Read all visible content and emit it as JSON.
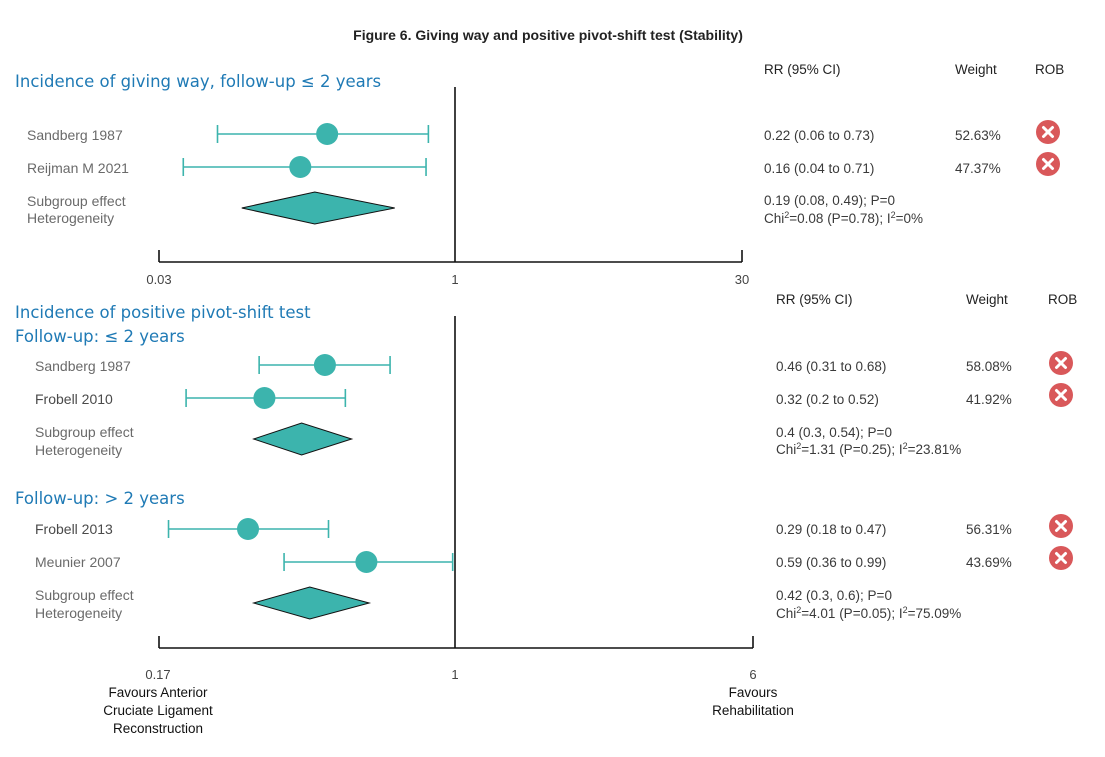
{
  "chart_data": {
    "type": "forest",
    "title": "Figure 6. Giving way and positive pivot-shift test (Stability)",
    "colors": {
      "marker": "#3cb4ad",
      "rob_high": "#d9585a",
      "section_title": "#1f7ab5"
    },
    "column_headers": {
      "rr": "RR (95% CI)",
      "weight": "Weight",
      "rob": "ROB"
    },
    "panels": [
      {
        "title": "Incidence of giving way, follow-up ≤ 2 years",
        "axis": {
          "scale": "log",
          "min": 0.03,
          "max": 30,
          "ref": 1,
          "tick_labels": [
            "0.03",
            "1",
            "30"
          ]
        },
        "groups": [
          {
            "subtitle": "",
            "studies": [
              {
                "name": "Sandberg 1987",
                "rr": 0.22,
                "lo": 0.06,
                "hi": 0.73,
                "rr_text": "0.22 (0.06 to 0.73)",
                "weight": "52.63%",
                "rob": "high",
                "rob_icon": "x-circle-icon"
              },
              {
                "name": "Reijman M 2021",
                "rr": 0.16,
                "lo": 0.04,
                "hi": 0.71,
                "rr_text": "0.16 (0.04 to 0.71)",
                "weight": "47.37%",
                "rob": "high",
                "rob_icon": "x-circle-icon"
              }
            ],
            "summary": {
              "rr": 0.19,
              "lo": 0.08,
              "hi": 0.49,
              "label1": "Subgroup effect",
              "label2": "Heterogeneity",
              "effect_text": "0.19 (0.08, 0.49); P=0",
              "chi_value": "=0.08 (P=0.78); I",
              "i2_value": "=0%"
            }
          }
        ]
      },
      {
        "title": "Incidence of positive pivot-shift test",
        "axis": {
          "scale": "log",
          "min": 0.17,
          "max": 6,
          "ref": 1,
          "tick_labels": [
            "0.17",
            "1",
            "6"
          ]
        },
        "groups": [
          {
            "subtitle": "Follow-up: ≤ 2 years",
            "studies": [
              {
                "name": "Sandberg 1987",
                "rr": 0.46,
                "lo": 0.31,
                "hi": 0.68,
                "rr_text": "0.46 (0.31 to 0.68)",
                "weight": "58.08%",
                "rob": "high",
                "rob_icon": "x-circle-icon"
              },
              {
                "name": "Frobell 2010",
                "rr": 0.32,
                "lo": 0.2,
                "hi": 0.52,
                "rr_text": "0.32 (0.2 to 0.52)",
                "weight": "41.92%",
                "rob": "high",
                "rob_icon": "x-circle-icon"
              }
            ],
            "summary": {
              "rr": 0.4,
              "lo": 0.3,
              "hi": 0.54,
              "label1": "Subgroup effect",
              "label2": "Heterogeneity",
              "effect_text": "0.4 (0.3, 0.54); P=0",
              "chi_value": "=1.31 (P=0.25); I",
              "i2_value": "=23.81%"
            }
          },
          {
            "subtitle": "Follow-up: > 2 years",
            "studies": [
              {
                "name": "Frobell 2013",
                "rr": 0.29,
                "lo": 0.18,
                "hi": 0.47,
                "rr_text": "0.29 (0.18 to 0.47)",
                "weight": "56.31%",
                "rob": "high",
                "rob_icon": "x-circle-icon"
              },
              {
                "name": "Meunier 2007",
                "rr": 0.59,
                "lo": 0.36,
                "hi": 0.99,
                "rr_text": "0.59 (0.36 to 0.99)",
                "weight": "43.69%",
                "rob": "high",
                "rob_icon": "x-circle-icon"
              }
            ],
            "summary": {
              "rr": 0.42,
              "lo": 0.3,
              "hi": 0.6,
              "label1": "Subgroup effect",
              "label2": "Heterogeneity",
              "effect_text": "0.42 (0.3, 0.6); P=0",
              "chi_value": "=4.01 (P=0.05); I",
              "i2_value": "=75.09%"
            }
          }
        ],
        "favours_left": [
          "Favours Anterior",
          "Cruciate Ligament",
          "Reconstruction"
        ],
        "favours_right": [
          "Favours",
          "Rehabilitation"
        ]
      }
    ],
    "chi_label": "Chi",
    "sup_two": "2"
  }
}
